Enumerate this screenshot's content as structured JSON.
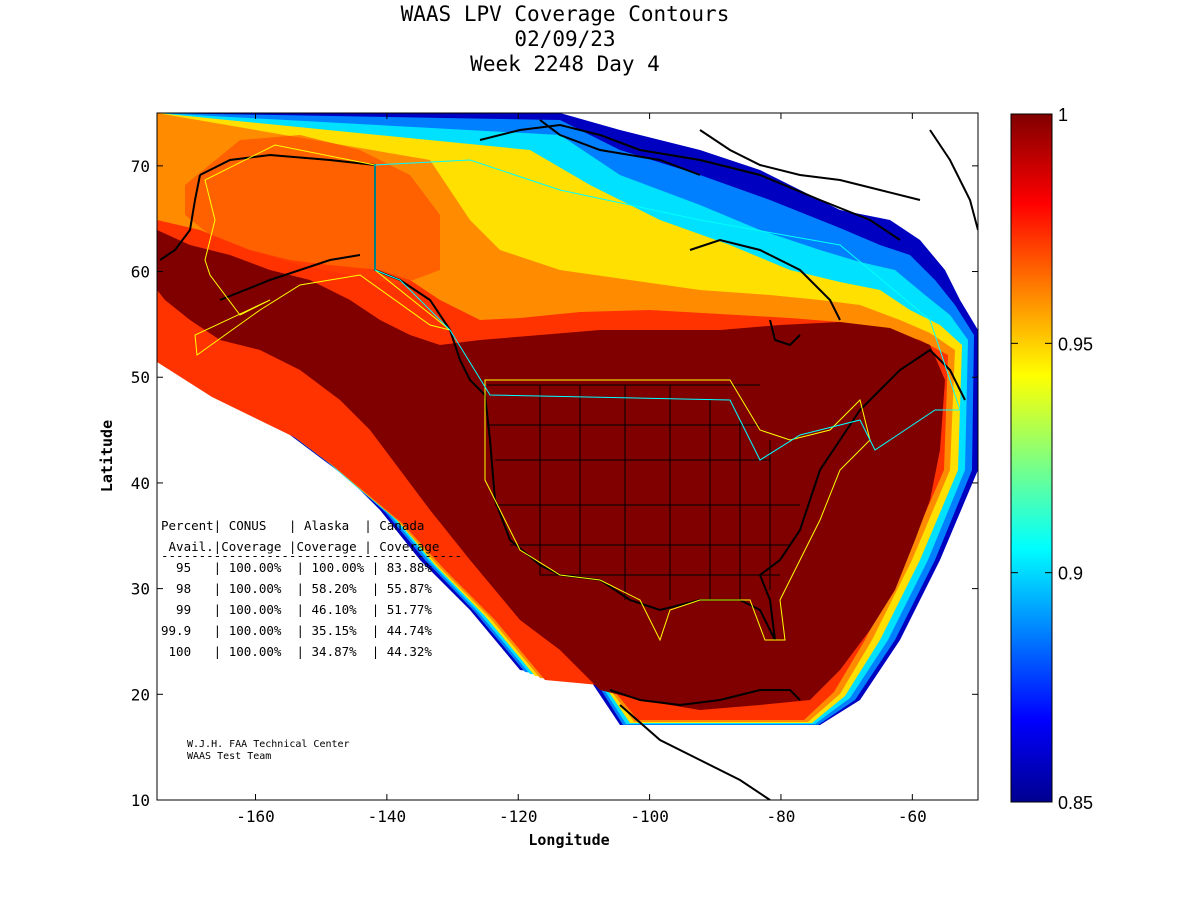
{
  "header": {
    "title": "WAAS LPV Coverage Contours",
    "date": "02/09/23",
    "week": "Week 2248 Day 4"
  },
  "map": {
    "xlabel": "Longitude",
    "ylabel": "Latitude",
    "xlim": [
      -175,
      -50
    ],
    "ylim": [
      10,
      75
    ],
    "x_ticks": [
      -160,
      -140,
      -120,
      -100,
      -80,
      -60
    ],
    "x_tick_labels": [
      "-160",
      "-140",
      "-120",
      "-100",
      "-80",
      "-60"
    ],
    "y_ticks": [
      10,
      20,
      30,
      40,
      50,
      60,
      70
    ],
    "y_tick_labels": [
      "10",
      "20",
      "30",
      "40",
      "50",
      "60",
      "70"
    ]
  },
  "colorbar": {
    "range": [
      0.85,
      1.0
    ],
    "ticks": [
      0.85,
      0.9,
      0.95,
      1.0
    ],
    "tick_labels": [
      "0.85",
      "0.9",
      "0.95",
      "1"
    ],
    "colormap": "jet",
    "colors": [
      "#00008f",
      "#0000ff",
      "#00ffff",
      "#ffff00",
      "#ff0000",
      "#800000"
    ]
  },
  "coverage_table": {
    "header1": "Percent| CONUS   | Alaska  | Canada",
    "header2": " Avail.|Coverage |Coverage | Coverage",
    "separator": "----------------------------------------",
    "rows": [
      "  95   | 100.00%  | 100.00% | 83.88%",
      "  98   | 100.00%  | 58.20%  | 55.87%",
      "  99   | 100.00%  | 46.10%  | 51.77%",
      "99.9   | 100.00%  | 35.15%  | 44.74%",
      " 100   | 100.00%  | 34.87%  | 44.32%"
    ]
  },
  "credit": {
    "line1": "W.J.H. FAA Technical Center",
    "line2": "WAAS Test Team"
  },
  "chart_data": {
    "type": "heatmap",
    "title": "WAAS LPV Coverage Contours",
    "xlabel": "Longitude",
    "ylabel": "Latitude",
    "xlim": [
      -175,
      -50
    ],
    "ylim": [
      10,
      75
    ],
    "value_range": [
      0.85,
      1.0
    ],
    "table": {
      "columns": [
        "Percent Avail.",
        "CONUS Coverage",
        "Alaska Coverage",
        "Canada Coverage"
      ],
      "rows": [
        [
          "95",
          "100.00%",
          "100.00%",
          "83.88%"
        ],
        [
          "98",
          "100.00%",
          "58.20%",
          "55.87%"
        ],
        [
          "99",
          "100.00%",
          "46.10%",
          "51.77%"
        ],
        [
          "99.9",
          "100.00%",
          "35.15%",
          "44.74%"
        ],
        [
          "100",
          "100.00%",
          "34.87%",
          "44.32%"
        ]
      ]
    }
  }
}
